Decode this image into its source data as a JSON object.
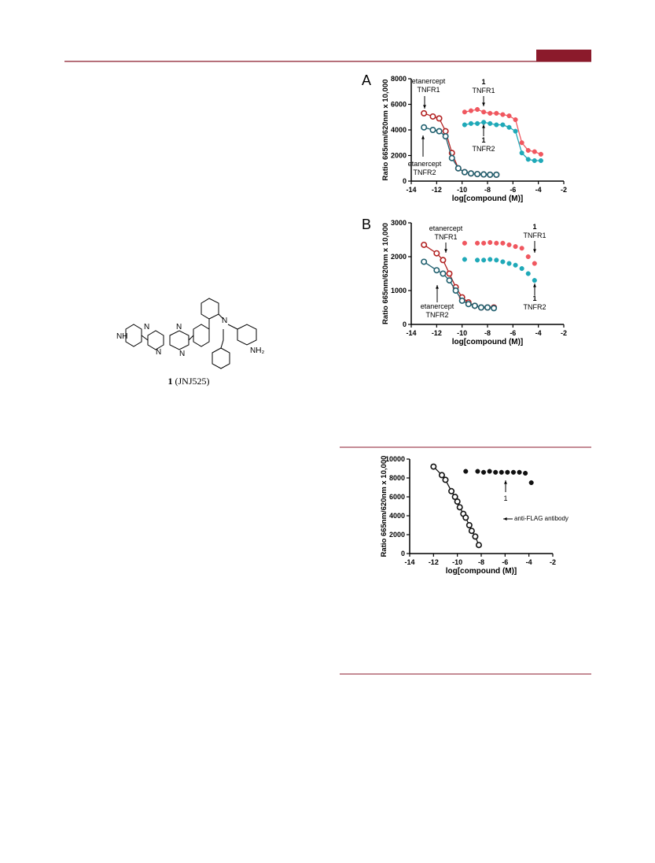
{
  "structure": {
    "atoms": [
      "NH",
      "N",
      "N",
      "N",
      "N",
      "N",
      "NH₂"
    ]
  },
  "caption": {
    "number": "1",
    "name": "(JNJ525)"
  },
  "chart_data": [
    {
      "type": "scatter",
      "panel": "A",
      "xlabel": "log[compound (M)]",
      "ylabel": "Ratio 665nm/620nm x 10,000",
      "xlim": [
        -14,
        -2
      ],
      "xticks": [
        -14,
        -12,
        -10,
        -8,
        -6,
        -4,
        -2
      ],
      "ylim": [
        0,
        8000
      ],
      "yticks": [
        0,
        2000,
        4000,
        6000,
        8000
      ],
      "series": [
        {
          "color": "#b22222",
          "marker": "open",
          "fit_line": true,
          "x": [
            -13,
            -12.3,
            -11.8,
            -11.3,
            -10.8,
            -10.3,
            -9.8,
            -9.3,
            -8.8,
            -8.3,
            -7.8,
            -7.3
          ],
          "values": [
            5300,
            5050,
            4900,
            3900,
            2200,
            1000,
            700,
            600,
            550,
            520,
            500,
            500
          ]
        },
        {
          "color": "#1f5f6e",
          "marker": "open",
          "fit_line": true,
          "x": [
            -13,
            -12.3,
            -11.8,
            -11.3,
            -10.8,
            -10.3,
            -9.8,
            -9.3,
            -8.8,
            -8.3,
            -7.8,
            -7.3
          ],
          "values": [
            4200,
            4000,
            3900,
            3500,
            1800,
            1000,
            700,
            600,
            550,
            520,
            500,
            500
          ]
        },
        {
          "color": "#f0575f",
          "marker": "filled",
          "fit_line": true,
          "x": [
            -9.8,
            -9.3,
            -8.8,
            -8.3,
            -7.8,
            -7.3,
            -6.8,
            -6.3,
            -5.8,
            -5.3,
            -4.8,
            -4.3,
            -3.8
          ],
          "values": [
            5400,
            5500,
            5600,
            5400,
            5300,
            5300,
            5200,
            5100,
            4800,
            3000,
            2400,
            2300,
            2100
          ]
        },
        {
          "color": "#1fa9b8",
          "marker": "filled",
          "fit_line": true,
          "x": [
            -9.8,
            -9.3,
            -8.8,
            -8.3,
            -7.8,
            -7.3,
            -6.8,
            -6.3,
            -5.8,
            -5.3,
            -4.8,
            -4.3,
            -3.8
          ],
          "values": [
            4400,
            4500,
            4500,
            4600,
            4500,
            4400,
            4400,
            4200,
            3900,
            2200,
            1700,
            1600,
            1600
          ]
        }
      ],
      "annotations": [
        {
          "lines": [
            "etanercept",
            "TNFR1"
          ]
        },
        {
          "lines": [
            "1",
            "TNFR1"
          ]
        },
        {
          "lines": [
            "1",
            "TNFR2"
          ]
        },
        {
          "lines": [
            "etanercept",
            "TNFR2"
          ]
        }
      ]
    },
    {
      "type": "scatter",
      "panel": "B",
      "xlabel": "log[compound (M)]",
      "ylabel": "Ratio 665nm/620nm x 10,000",
      "xlim": [
        -14,
        -2
      ],
      "xticks": [
        -14,
        -12,
        -10,
        -8,
        -6,
        -4,
        -2
      ],
      "ylim": [
        0,
        3000
      ],
      "yticks": [
        0,
        1000,
        2000,
        3000
      ],
      "series": [
        {
          "color": "#b22222",
          "marker": "open",
          "fit_line": true,
          "x": [
            -13,
            -12,
            -11.5,
            -11,
            -10.5,
            -10,
            -9.5,
            -9,
            -8.5,
            -8,
            -7.5
          ],
          "values": [
            2350,
            2100,
            1900,
            1500,
            1100,
            800,
            650,
            550,
            500,
            500,
            500
          ]
        },
        {
          "color": "#1f5f6e",
          "marker": "open",
          "fit_line": true,
          "x": [
            -13,
            -12,
            -11.5,
            -11,
            -10.5,
            -10,
            -9.5,
            -9,
            -8.5,
            -8,
            -7.5
          ],
          "values": [
            1850,
            1600,
            1500,
            1300,
            1000,
            700,
            600,
            550,
            500,
            500,
            480
          ]
        },
        {
          "color": "#f0575f",
          "marker": "filled",
          "fit_line": false,
          "x": [
            -9.8,
            -8.8,
            -8.3,
            -7.8,
            -7.3,
            -6.8,
            -6.3,
            -5.8,
            -5.3,
            -4.8,
            -4.3
          ],
          "values": [
            2400,
            2400,
            2400,
            2420,
            2400,
            2400,
            2350,
            2300,
            2250,
            2000,
            1800
          ]
        },
        {
          "color": "#1fa9b8",
          "marker": "filled",
          "fit_line": false,
          "x": [
            -9.8,
            -8.8,
            -8.3,
            -7.8,
            -7.3,
            -6.8,
            -6.3,
            -5.8,
            -5.3,
            -4.8,
            -4.3
          ],
          "values": [
            1920,
            1900,
            1900,
            1920,
            1900,
            1850,
            1800,
            1750,
            1650,
            1500,
            1300
          ]
        }
      ],
      "annotations": [
        {
          "lines": [
            "etanercept",
            "TNFR1"
          ]
        },
        {
          "lines": [
            "1",
            "TNFR1"
          ]
        },
        {
          "lines": [
            "1",
            "TNFR2"
          ]
        },
        {
          "lines": [
            "etanercept",
            "TNFR2"
          ]
        }
      ]
    },
    {
      "type": "scatter",
      "xlabel": "log[compound (M)]",
      "ylabel": "Ratio 665nm/620nm x 10,000",
      "xlim": [
        -14,
        -2
      ],
      "xticks": [
        -14,
        -12,
        -10,
        -8,
        -6,
        -4,
        -2
      ],
      "ylim": [
        0,
        10000
      ],
      "yticks": [
        0,
        2000,
        4000,
        6000,
        8000,
        10000
      ],
      "series": [
        {
          "color": "#111111",
          "marker": "open",
          "fit_line": true,
          "x": [
            -12,
            -11.3,
            -11,
            -10.5,
            -10.2,
            -10,
            -9.8,
            -9.5,
            -9.3,
            -9,
            -8.8,
            -8.5,
            -8.2
          ],
          "values": [
            9200,
            8300,
            7800,
            6600,
            6000,
            5500,
            4900,
            4200,
            3800,
            3000,
            2400,
            1800,
            900
          ]
        },
        {
          "color": "#111111",
          "marker": "filled",
          "fit_line": false,
          "x": [
            -9.3,
            -8.3,
            -7.8,
            -7.3,
            -6.8,
            -6.3,
            -5.8,
            -5.3,
            -4.8,
            -4.3,
            -3.8
          ],
          "values": [
            8700,
            8700,
            8600,
            8700,
            8600,
            8600,
            8600,
            8600,
            8600,
            8500,
            7500
          ]
        }
      ],
      "annotations": [
        {
          "lines": [
            "1"
          ]
        },
        {
          "lines": [
            "anti-FLAG antibody"
          ]
        }
      ]
    }
  ]
}
